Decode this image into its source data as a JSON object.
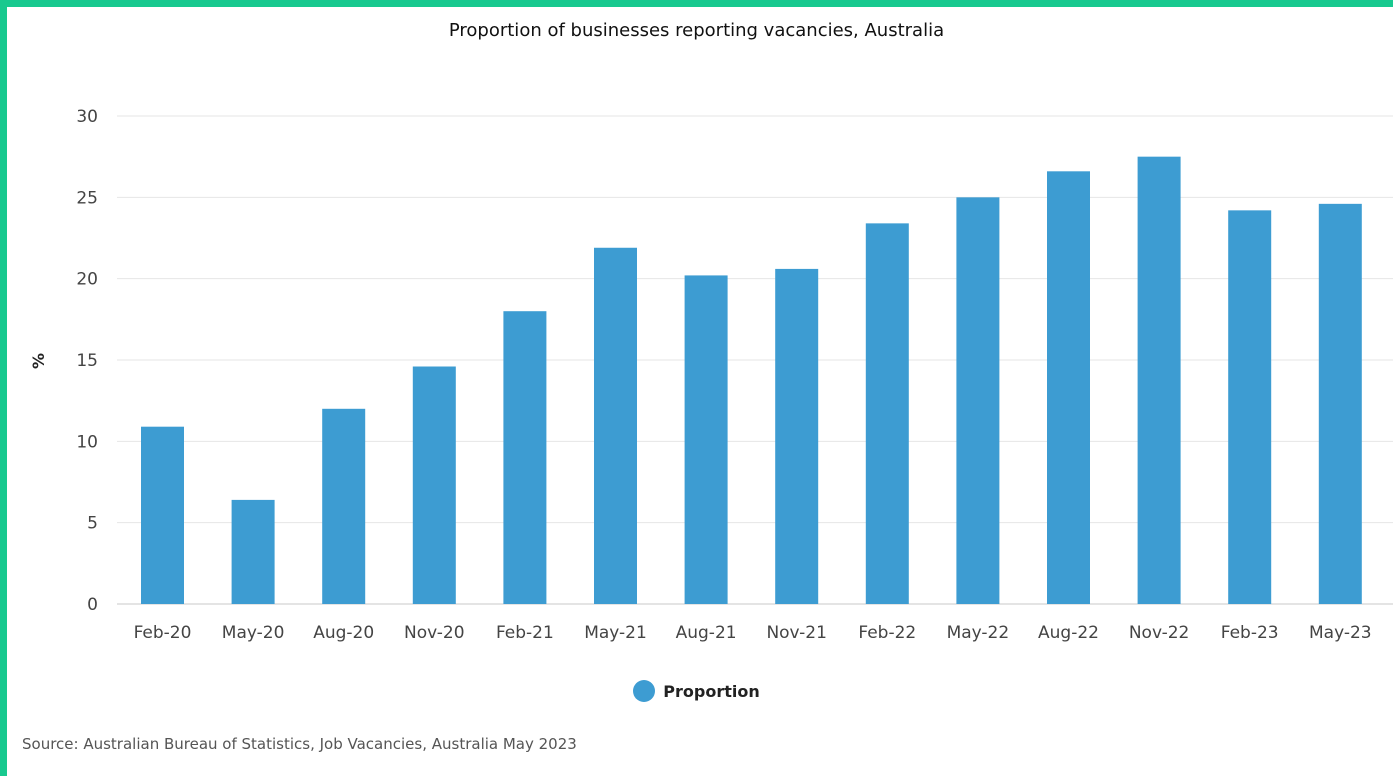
{
  "chart_data": {
    "type": "bar",
    "title": "Proportion of businesses reporting vacancies, Australia",
    "xlabel": "",
    "ylabel": "%",
    "categories": [
      "Feb-20",
      "May-20",
      "Aug-20",
      "Nov-20",
      "Feb-21",
      "May-21",
      "Aug-21",
      "Nov-21",
      "Feb-22",
      "May-22",
      "Aug-22",
      "Nov-22",
      "Feb-23",
      "May-23"
    ],
    "series": [
      {
        "name": "Proportion",
        "color": "#3d9cd2",
        "values": [
          10.9,
          6.4,
          12.0,
          14.6,
          18.0,
          21.9,
          20.2,
          20.6,
          23.4,
          25.0,
          26.6,
          27.5,
          24.2,
          24.6
        ]
      }
    ],
    "ylim": [
      0,
      30
    ],
    "yticks": [
      0,
      5,
      10,
      15,
      20,
      25,
      30
    ],
    "grid": true,
    "legend_position": "bottom-center"
  },
  "source": "Source: Australian Bureau of Statistics, Job Vacancies, Australia May 2023",
  "colors": {
    "frame": "#18c98f",
    "background": "#ffffff",
    "bar": "#3d9cd2",
    "grid": "#e6e6e6"
  }
}
